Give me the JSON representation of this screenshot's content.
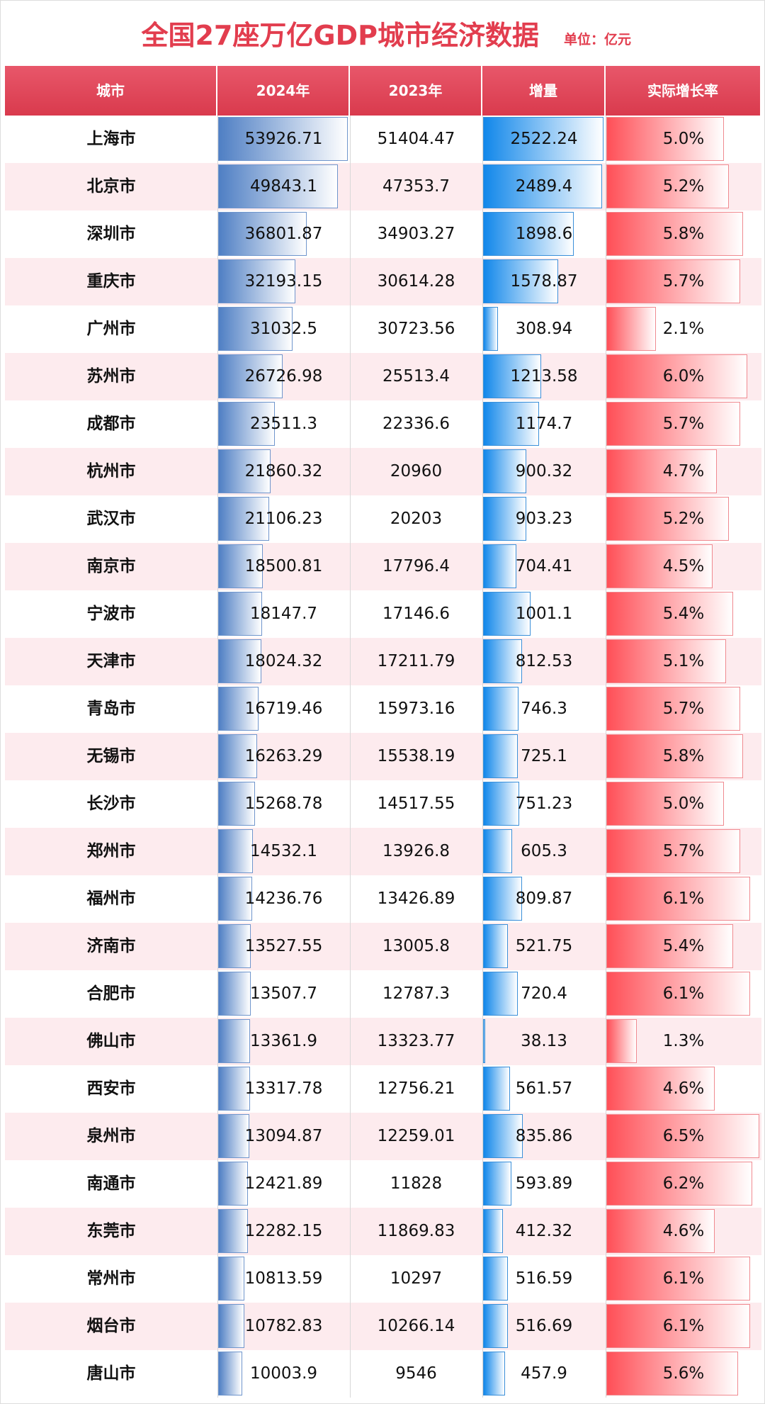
{
  "header": {
    "title": "全国27座万亿GDP城市经济数据",
    "unit": "单位：亿元"
  },
  "table": {
    "headers": [
      "城市",
      "2024年",
      "2023年",
      "增量",
      "实际增长率"
    ],
    "rows": [
      [
        "上海市",
        53926.71,
        51404.47,
        2522.24,
        {
          "value": 5.0,
          "label": "5.0%"
        }
      ],
      [
        "北京市",
        49843.1,
        47353.7,
        2489.4,
        {
          "value": 5.2,
          "label": "5.2%"
        }
      ],
      [
        "深圳市",
        36801.87,
        34903.27,
        1898.6,
        {
          "value": 5.8,
          "label": "5.8%"
        }
      ],
      [
        "重庆市",
        32193.15,
        30614.28,
        1578.87,
        {
          "value": 5.7,
          "label": "5.7%"
        }
      ],
      [
        "广州市",
        31032.5,
        30723.56,
        308.94,
        {
          "value": 2.1,
          "label": "2.1%"
        }
      ],
      [
        "苏州市",
        26726.98,
        25513.4,
        1213.58,
        {
          "value": 6.0,
          "label": "6.0%"
        }
      ],
      [
        "成都市",
        23511.3,
        22336.6,
        1174.7,
        {
          "value": 5.7,
          "label": "5.7%"
        }
      ],
      [
        "杭州市",
        21860.32,
        20960,
        900.32,
        {
          "value": 4.7,
          "label": "4.7%"
        }
      ],
      [
        "武汉市",
        21106.23,
        20203,
        903.23,
        {
          "value": 5.2,
          "label": "5.2%"
        }
      ],
      [
        "南京市",
        18500.81,
        17796.4,
        704.41,
        {
          "value": 4.5,
          "label": "4.5%"
        }
      ],
      [
        "宁波市",
        18147.7,
        17146.6,
        1001.1,
        {
          "value": 5.4,
          "label": "5.4%"
        }
      ],
      [
        "天津市",
        18024.32,
        17211.79,
        812.53,
        {
          "value": 5.1,
          "label": "5.1%"
        }
      ],
      [
        "青岛市",
        16719.46,
        15973.16,
        746.3,
        {
          "value": 5.7,
          "label": "5.7%"
        }
      ],
      [
        "无锡市",
        16263.29,
        15538.19,
        725.1,
        {
          "value": 5.8,
          "label": "5.8%"
        }
      ],
      [
        "长沙市",
        15268.78,
        14517.55,
        751.23,
        {
          "value": 5.0,
          "label": "5.0%"
        }
      ],
      [
        "郑州市",
        14532.1,
        13926.8,
        605.3,
        {
          "value": 5.7,
          "label": "5.7%"
        }
      ],
      [
        "福州市",
        14236.76,
        13426.89,
        809.87,
        {
          "value": 6.1,
          "label": "6.1%"
        }
      ],
      [
        "济南市",
        13527.55,
        13005.8,
        521.75,
        {
          "value": 5.4,
          "label": "5.4%"
        }
      ],
      [
        "合肥市",
        13507.7,
        12787.3,
        720.4,
        {
          "value": 6.1,
          "label": "6.1%"
        }
      ],
      [
        "佛山市",
        13361.9,
        13323.77,
        38.13,
        {
          "value": 1.3,
          "label": "1.3%"
        }
      ],
      [
        "西安市",
        13317.78,
        12756.21,
        561.57,
        {
          "value": 4.6,
          "label": "4.6%"
        }
      ],
      [
        "泉州市",
        13094.87,
        12259.01,
        835.86,
        {
          "value": 6.5,
          "label": "6.5%"
        }
      ],
      [
        "南通市",
        12421.89,
        11828,
        593.89,
        {
          "value": 6.2,
          "label": "6.2%"
        }
      ],
      [
        "东莞市",
        12282.15,
        11869.83,
        412.32,
        {
          "value": 4.6,
          "label": "4.6%"
        }
      ],
      [
        "常州市",
        10813.59,
        10297,
        516.59,
        {
          "value": 6.1,
          "label": "6.1%"
        }
      ],
      [
        "烟台市",
        10782.83,
        10266.14,
        516.69,
        {
          "value": 6.1,
          "label": "6.1%"
        }
      ],
      [
        "唐山市",
        10003.9,
        9546,
        457.9,
        {
          "value": 5.6,
          "label": "5.6%"
        }
      ]
    ]
  }
}
